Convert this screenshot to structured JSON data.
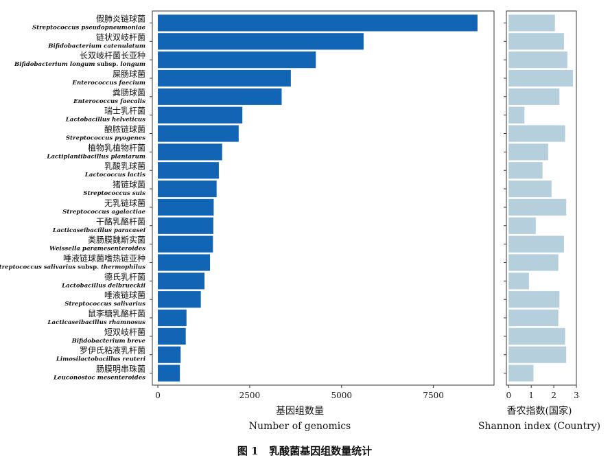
{
  "chart_data": [
    {
      "type": "bar",
      "orientation": "horizontal",
      "categories": [
        {
          "cn": "假肺炎链球菌",
          "en": "Streptococcus pseudopneumoniae"
        },
        {
          "cn": "链状双岐杆菌",
          "en": "Bifidobacterium catenulatum"
        },
        {
          "cn": "长双岐杆菌长亚种",
          "en": "Bifidobacterium longum",
          "en_suffix": "subsp.",
          "en_tail": "longum"
        },
        {
          "cn": "屎肠球菌",
          "en": "Enterococcus faecium"
        },
        {
          "cn": "粪肠球菌",
          "en": "Enterococcus faecalis"
        },
        {
          "cn": "瑞士乳杆菌",
          "en": "Lactobacillus helveticus"
        },
        {
          "cn": "酿脓链球菌",
          "en": "Streptococcus pyogenes"
        },
        {
          "cn": "植物乳植物杆菌",
          "en": "Lactiplantibacillus plantarum"
        },
        {
          "cn": "乳酸乳球菌",
          "en": "Lactococcus lactis"
        },
        {
          "cn": "猪链球菌",
          "en": "Streptococcus suis"
        },
        {
          "cn": "无乳链球菌",
          "en": "Streptococcus agalactiae"
        },
        {
          "cn": "干酪乳酪杆菌",
          "en": "Lacticaseibacillus paracasei"
        },
        {
          "cn": "类肠膜魏斯实菌",
          "en": "Weissella paramesenteroides"
        },
        {
          "cn": "唾液链球菌嗜热链亚种",
          "en": "Streptococcus salivarius",
          "en_suffix": "subsp.",
          "en_tail": "thermophilus"
        },
        {
          "cn": "德氏乳杆菌",
          "en": "Lactobacillus delbrueckii"
        },
        {
          "cn": "唾液链球菌",
          "en": "Streptococcus salivarius"
        },
        {
          "cn": "鼠李糖乳酪杆菌",
          "en": "Lacticaseibacillus rhamnosus"
        },
        {
          "cn": "短双岐杆菌",
          "en": "Bifidobacterium breve"
        },
        {
          "cn": "罗伊氏粘液乳杆菌",
          "en": "Limosilactobacillus reuteri"
        },
        {
          "cn": "肠膜明串珠菌",
          "en": "Leuconostoc mesenteroides"
        }
      ],
      "values": [
        8700,
        5600,
        4300,
        3620,
        3370,
        2300,
        2200,
        1750,
        1660,
        1600,
        1520,
        1510,
        1500,
        1420,
        1270,
        1170,
        780,
        760,
        620,
        600
      ],
      "xlim": [
        -150,
        9150
      ],
      "xticks": [
        0,
        2500,
        5000,
        7500
      ],
      "xlabel_cn": "基因组数量",
      "xlabel": "Number of genomics",
      "bar_color": "#1265b5"
    },
    {
      "type": "bar",
      "orientation": "horizontal",
      "values": [
        2.05,
        2.45,
        2.6,
        2.85,
        2.25,
        0.7,
        2.5,
        1.75,
        1.5,
        1.9,
        2.55,
        1.2,
        2.45,
        2.2,
        0.9,
        2.25,
        2.2,
        2.5,
        2.55,
        1.1
      ],
      "xlim": [
        -0.1,
        3.0
      ],
      "xticks": [
        0,
        1,
        2,
        3
      ],
      "xlabel_cn": "香农指数(国家)",
      "xlabel": "Shannon index (Country)",
      "bar_color": "#b5cfdc"
    }
  ],
  "caption": "图 1   乳酸菌基因组数量统计"
}
